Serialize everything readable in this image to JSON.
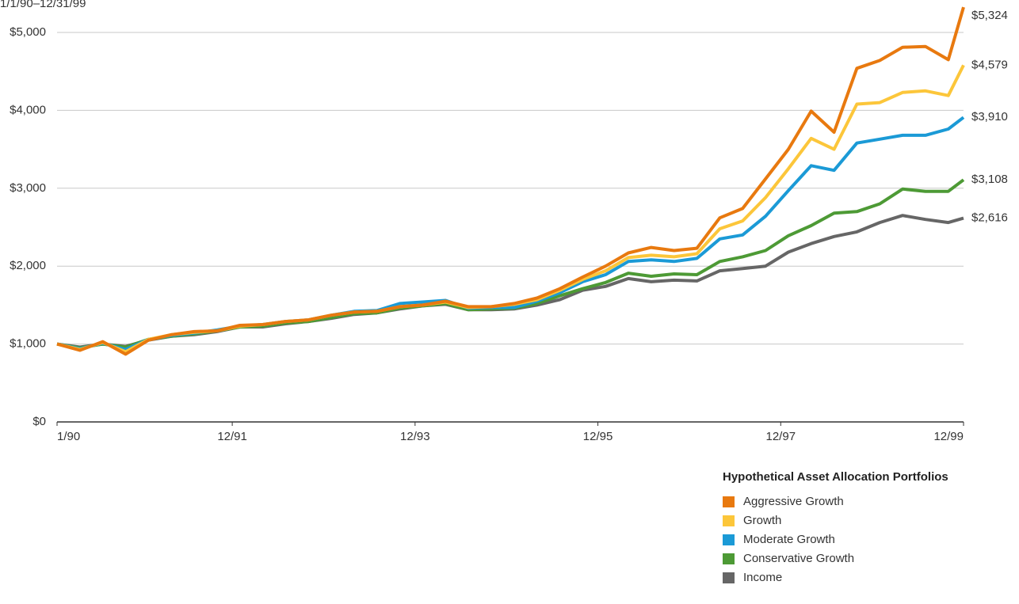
{
  "chart_data": {
    "type": "line",
    "title": "1/1/90–12/31/99",
    "x": [
      0,
      3,
      6,
      9,
      12,
      15,
      18,
      21,
      24,
      27,
      30,
      33,
      36,
      39,
      42,
      45,
      48,
      51,
      54,
      57,
      60,
      63,
      66,
      69,
      72,
      75,
      78,
      81,
      84,
      87,
      90,
      93,
      96,
      99,
      102,
      105,
      108,
      111,
      114,
      117,
      119
    ],
    "xlim": [
      0,
      119
    ],
    "xticks": [
      {
        "value": 0,
        "label": "1/90"
      },
      {
        "value": 23,
        "label": "12/91"
      },
      {
        "value": 47,
        "label": "12/93"
      },
      {
        "value": 71,
        "label": "12/95"
      },
      {
        "value": 95,
        "label": "12/97"
      },
      {
        "value": 119,
        "label": "12/99"
      }
    ],
    "ylim": [
      0,
      5000
    ],
    "yticks": [
      {
        "value": 0,
        "label": "$0"
      },
      {
        "value": 1000,
        "label": "$1,000"
      },
      {
        "value": 2000,
        "label": "$2,000"
      },
      {
        "value": 3000,
        "label": "$3,000"
      },
      {
        "value": 4000,
        "label": "$4,000"
      },
      {
        "value": 5000,
        "label": "$5,000"
      }
    ],
    "grid": true,
    "legend_title": "Hypothetical Asset Allocation Portfolios",
    "legend": "bottom-right",
    "series": [
      {
        "name": "Aggressive Growth",
        "color": "#e8790f",
        "values": [
          1000,
          920,
          1030,
          870,
          1050,
          1120,
          1160,
          1170,
          1240,
          1250,
          1290,
          1310,
          1370,
          1410,
          1420,
          1480,
          1500,
          1550,
          1480,
          1480,
          1520,
          1590,
          1710,
          1860,
          2000,
          2170,
          2240,
          2200,
          2230,
          2620,
          2740,
          3120,
          3500,
          3990,
          3720,
          4540,
          4640,
          4810,
          4820,
          4650,
          5324
        ],
        "value_labels": [
          null,
          null,
          null,
          null,
          null,
          null,
          null,
          null,
          null,
          null,
          null,
          null,
          null,
          null,
          null,
          null,
          null,
          null,
          null,
          null,
          null,
          null,
          null,
          null,
          null,
          null,
          null,
          null,
          null,
          null,
          null,
          null,
          null,
          null,
          null,
          null,
          null,
          null,
          null,
          null,
          "$5,324"
        ]
      },
      {
        "name": "Growth",
        "color": "#fcc63a",
        "values": [
          1000,
          930,
          1020,
          900,
          1060,
          1120,
          1150,
          1170,
          1230,
          1250,
          1290,
          1310,
          1370,
          1410,
          1420,
          1480,
          1500,
          1540,
          1470,
          1480,
          1510,
          1570,
          1690,
          1830,
          1940,
          2110,
          2140,
          2120,
          2160,
          2480,
          2580,
          2880,
          3250,
          3640,
          3500,
          4080,
          4100,
          4230,
          4250,
          4190,
          4579
        ],
        "value_labels": [
          null,
          null,
          null,
          null,
          null,
          null,
          null,
          null,
          null,
          null,
          null,
          null,
          null,
          null,
          null,
          null,
          null,
          null,
          null,
          null,
          null,
          null,
          null,
          null,
          null,
          null,
          null,
          null,
          null,
          null,
          null,
          null,
          null,
          null,
          null,
          null,
          null,
          null,
          null,
          null,
          "$4,579"
        ]
      },
      {
        "name": "Moderate Growth",
        "color": "#1b9ad6",
        "values": [
          1000,
          940,
          1010,
          930,
          1060,
          1110,
          1140,
          1180,
          1230,
          1250,
          1290,
          1310,
          1370,
          1420,
          1430,
          1520,
          1540,
          1560,
          1460,
          1470,
          1470,
          1550,
          1660,
          1800,
          1890,
          2060,
          2080,
          2060,
          2100,
          2350,
          2400,
          2640,
          2970,
          3290,
          3230,
          3580,
          3630,
          3680,
          3680,
          3760,
          3910
        ],
        "value_labels": [
          null,
          null,
          null,
          null,
          null,
          null,
          null,
          null,
          null,
          null,
          null,
          null,
          null,
          null,
          null,
          null,
          null,
          null,
          null,
          null,
          null,
          null,
          null,
          null,
          null,
          null,
          null,
          null,
          null,
          null,
          null,
          null,
          null,
          null,
          null,
          null,
          null,
          null,
          null,
          null,
          "$3,910"
        ]
      },
      {
        "name": "Conservative Growth",
        "color": "#4d9a35",
        "values": [
          1000,
          950,
          1000,
          960,
          1060,
          1100,
          1130,
          1170,
          1220,
          1230,
          1270,
          1290,
          1340,
          1390,
          1400,
          1460,
          1490,
          1520,
          1440,
          1450,
          1460,
          1520,
          1620,
          1710,
          1790,
          1910,
          1870,
          1900,
          1890,
          2060,
          2120,
          2200,
          2390,
          2520,
          2680,
          2700,
          2800,
          2990,
          2960,
          2960,
          3108
        ],
        "value_labels": [
          null,
          null,
          null,
          null,
          null,
          null,
          null,
          null,
          null,
          null,
          null,
          null,
          null,
          null,
          null,
          null,
          null,
          null,
          null,
          null,
          null,
          null,
          null,
          null,
          null,
          null,
          null,
          null,
          null,
          null,
          null,
          null,
          null,
          null,
          null,
          null,
          null,
          null,
          null,
          null,
          "$3,108"
        ]
      },
      {
        "name": "Income",
        "color": "#666666",
        "values": [
          1000,
          960,
          1000,
          970,
          1050,
          1100,
          1120,
          1160,
          1220,
          1220,
          1260,
          1290,
          1330,
          1380,
          1400,
          1450,
          1490,
          1510,
          1440,
          1440,
          1450,
          1500,
          1570,
          1690,
          1740,
          1840,
          1800,
          1820,
          1810,
          1940,
          1970,
          2000,
          2180,
          2290,
          2380,
          2440,
          2560,
          2650,
          2600,
          2560,
          2616
        ],
        "value_labels": [
          null,
          null,
          null,
          null,
          null,
          null,
          null,
          null,
          null,
          null,
          null,
          null,
          null,
          null,
          null,
          null,
          null,
          null,
          null,
          null,
          null,
          null,
          null,
          null,
          null,
          null,
          null,
          null,
          null,
          null,
          null,
          null,
          null,
          null,
          null,
          null,
          null,
          null,
          null,
          null,
          "$2,616"
        ]
      }
    ]
  }
}
